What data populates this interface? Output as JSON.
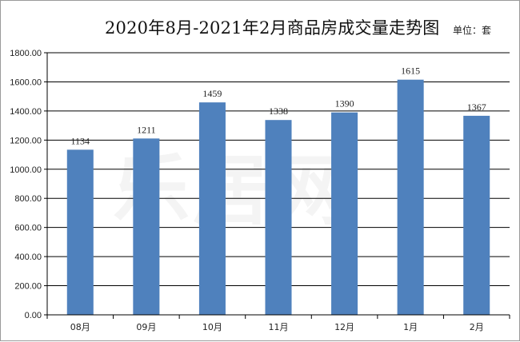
{
  "chart_data": {
    "type": "bar",
    "title": "2020年8月-2021年2月商品房成交量走势图",
    "unit": "单位：套",
    "categories": [
      "08月",
      "09月",
      "10月",
      "11月",
      "12月",
      "1月",
      "2月"
    ],
    "values": [
      1134,
      1211,
      1459,
      1338,
      1390,
      1615,
      1367
    ],
    "data_labels": [
      "1134",
      "1211",
      "1459",
      "1338",
      "1390",
      "1615",
      "1367"
    ],
    "yticks": [
      "0.00",
      "200.00",
      "400.00",
      "600.00",
      "800.00",
      "1000.00",
      "1200.00",
      "1400.00",
      "1600.00",
      "1800.00"
    ],
    "ylim": [
      0,
      1800
    ],
    "grid": true,
    "bar_color": "#4f81bd",
    "legend": "none"
  },
  "watermark": "乐居网"
}
